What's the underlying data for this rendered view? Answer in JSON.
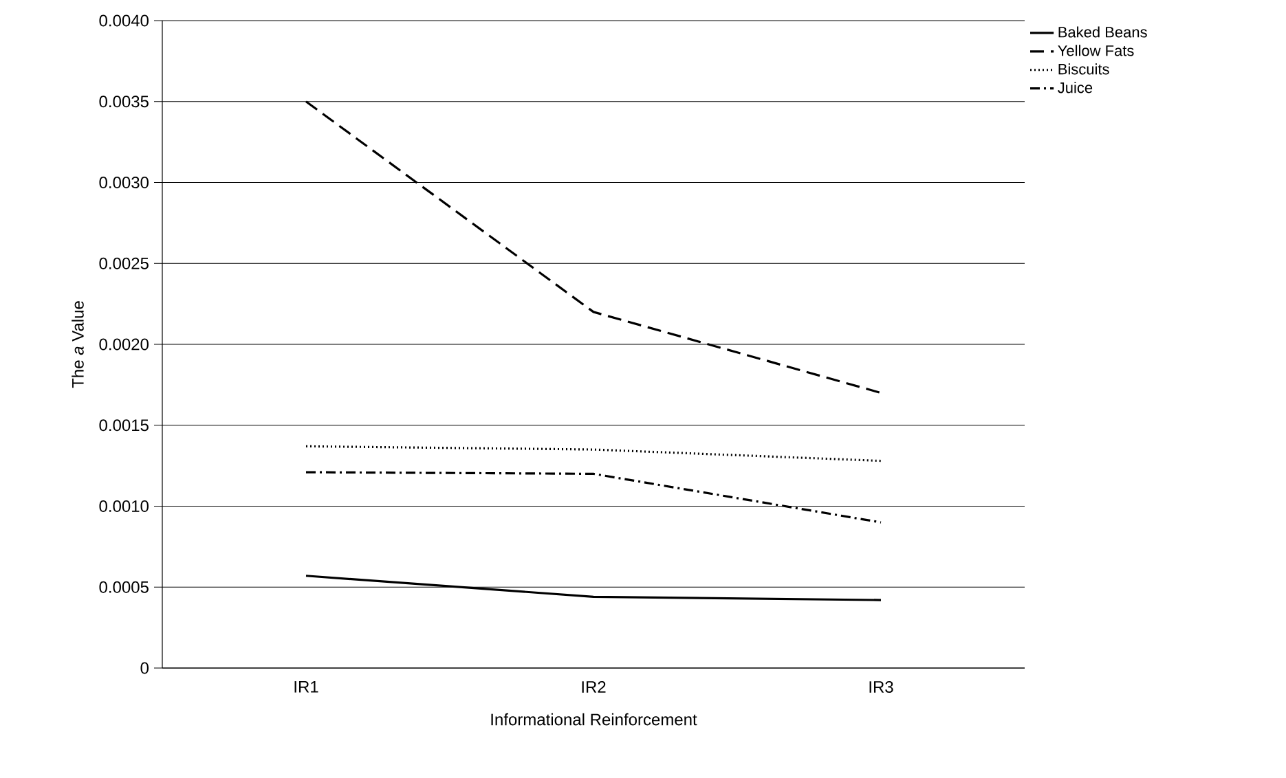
{
  "chart_data": {
    "type": "line",
    "xlabel": "Informational Reinforcement",
    "ylabel": "The *a* Value",
    "categories": [
      "IR1",
      "IR2",
      "IR3"
    ],
    "series": [
      {
        "name": "Baked Beans",
        "color": "#000000",
        "line_style": "solid",
        "values": [
          0.00057,
          0.00044,
          0.00042
        ]
      },
      {
        "name": "Yellow Fats",
        "color": "#000000",
        "line_style": "dashed",
        "values": [
          0.0035,
          0.0022,
          0.0017
        ]
      },
      {
        "name": "Biscuits",
        "color": "#000000",
        "line_style": "dotted",
        "values": [
          0.00137,
          0.00135,
          0.00128
        ]
      },
      {
        "name": "Juice",
        "color": "#000000",
        "line_style": "dashdot",
        "values": [
          0.00121,
          0.0012,
          0.0009
        ]
      }
    ],
    "ylim": [
      0,
      0.004
    ],
    "yticks": [
      0,
      {
        "value": 0.0005,
        "label": "0.0005"
      },
      {
        "value": 0.001,
        "label": "0.0010"
      },
      {
        "value": 0.0015,
        "label": "0.0015"
      },
      {
        "value": 0.002,
        "label": "0.0020"
      },
      {
        "value": 0.0025,
        "label": "0.0025"
      },
      {
        "value": 0.003,
        "label": "0.0030"
      },
      {
        "value": 0.0035,
        "label": "0.0035"
      },
      {
        "value": 0.004,
        "label": "0.0040"
      }
    ],
    "grid": "y",
    "legend": "top right",
    "marker": "none"
  }
}
